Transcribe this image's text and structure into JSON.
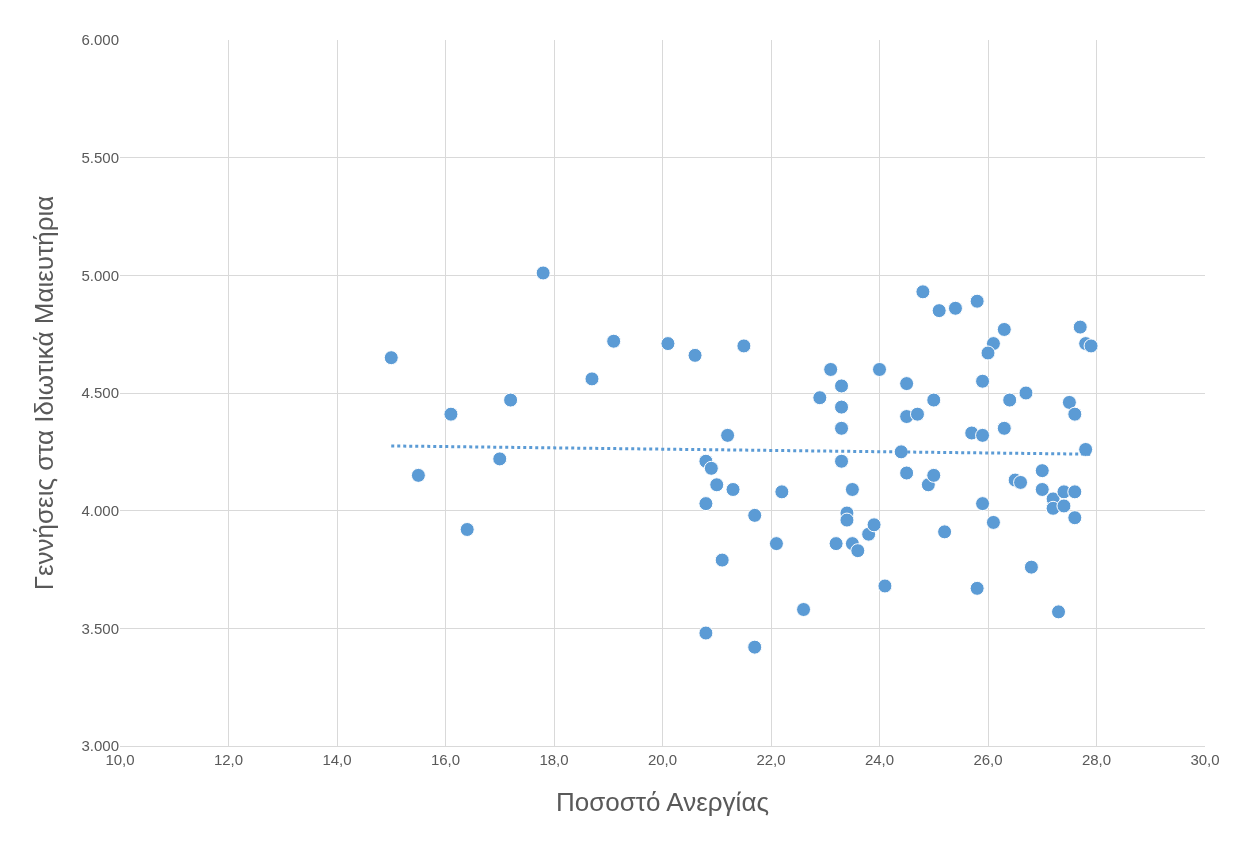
{
  "chart_data": {
    "type": "scatter",
    "xlabel": "Ποσοστό Ανεργίας",
    "ylabel": "Γεννήσεις στα Ιδιωτικά Μαιευτήρια",
    "xlim": [
      10,
      30
    ],
    "ylim": [
      3000,
      6000
    ],
    "xticks": [
      {
        "value": 10,
        "label": "10,0"
      },
      {
        "value": 12,
        "label": "12,0"
      },
      {
        "value": 14,
        "label": "14,0"
      },
      {
        "value": 16,
        "label": "16,0"
      },
      {
        "value": 18,
        "label": "18,0"
      },
      {
        "value": 20,
        "label": "20,0"
      },
      {
        "value": 22,
        "label": "22,0"
      },
      {
        "value": 24,
        "label": "24,0"
      },
      {
        "value": 26,
        "label": "26,0"
      },
      {
        "value": 28,
        "label": "28,0"
      },
      {
        "value": 30,
        "label": "30,0"
      }
    ],
    "yticks": [
      {
        "value": 3000,
        "label": "3.000"
      },
      {
        "value": 3500,
        "label": "3.500"
      },
      {
        "value": 4000,
        "label": "4.000"
      },
      {
        "value": 4500,
        "label": "4.500"
      },
      {
        "value": 5000,
        "label": "5.000"
      },
      {
        "value": 5500,
        "label": "5.500"
      },
      {
        "value": 6000,
        "label": "6.000"
      }
    ],
    "grid": true,
    "marker": "circle",
    "series": [
      {
        "color": "#5b9bd5",
        "x": [
          15.0,
          15.5,
          16.1,
          16.4,
          17.0,
          17.2,
          17.8,
          18.7,
          19.1,
          20.1,
          20.6,
          21.5,
          21.2,
          20.8,
          20.9,
          21.0,
          21.3,
          20.8,
          22.2,
          21.7,
          22.1,
          21.1,
          22.6,
          20.8,
          21.7,
          23.1,
          22.9,
          23.3,
          23.3,
          23.3,
          23.3,
          24.0,
          24.5,
          24.5,
          24.7,
          25.0,
          24.4,
          24.8,
          25.1,
          25.4,
          25.8,
          26.3,
          26.1,
          26.0,
          25.9,
          26.4,
          26.7,
          25.7,
          25.9,
          26.3,
          27.7,
          27.8,
          27.9,
          27.5,
          27.6,
          27.8,
          23.5,
          23.4,
          23.4,
          23.2,
          23.5,
          23.6,
          23.8,
          23.9,
          24.1,
          24.5,
          24.9,
          25.0,
          25.2,
          25.9,
          26.1,
          25.8,
          26.5,
          26.6,
          27.0,
          27.0,
          26.8,
          27.3,
          27.2,
          27.4,
          27.6,
          27.2,
          27.4,
          27.6
        ],
        "values": [
          4650,
          4150,
          4410,
          3920,
          4220,
          4470,
          5010,
          4560,
          4720,
          4710,
          4660,
          4700,
          4320,
          4210,
          4180,
          4110,
          4090,
          4030,
          4080,
          3980,
          3860,
          3790,
          3580,
          3480,
          3420,
          4600,
          4480,
          4530,
          4440,
          4350,
          4210,
          4600,
          4540,
          4400,
          4410,
          4470,
          4250,
          4930,
          4850,
          4860,
          4890,
          4770,
          4710,
          4670,
          4550,
          4470,
          4500,
          4330,
          4320,
          4350,
          4780,
          4710,
          4700,
          4460,
          4410,
          4260,
          4090,
          3990,
          3960,
          3860,
          3860,
          3830,
          3900,
          3940,
          3680,
          4160,
          4110,
          4150,
          3910,
          4030,
          3950,
          3670,
          4130,
          4120,
          4170,
          4090,
          3760,
          3570,
          4050,
          4080,
          4080,
          4010,
          4020,
          3970
        ]
      },
      {
        "type": "line",
        "color": "#5b9bd5",
        "line_style": "dotted",
        "marker": "none",
        "x": [
          15.0,
          27.9
        ],
        "values": [
          4275,
          4240
        ]
      }
    ]
  }
}
